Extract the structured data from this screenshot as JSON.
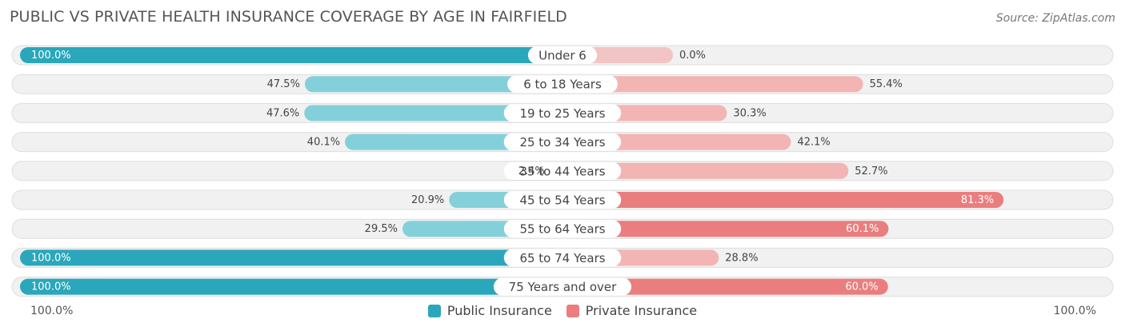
{
  "header": {
    "title": "PUBLIC VS PRIVATE HEALTH INSURANCE COVERAGE BY AGE IN FAIRFIELD",
    "source": "Source: ZipAtlas.com"
  },
  "axis": {
    "left_label": "100.0%",
    "right_label": "100.0%"
  },
  "legend": {
    "public_label": "Public Insurance",
    "private_label": "Private Insurance"
  },
  "colors": {
    "public_strong": "#2aa7ba",
    "public_light": "#84d0da",
    "private_strong": "#ea7e7e",
    "private_light": "#f3b4b4",
    "row_bg": "#f1f1f1",
    "row_border": "#dedede"
  },
  "chart_data": {
    "type": "bar",
    "title": "PUBLIC VS PRIVATE HEALTH INSURANCE COVERAGE BY AGE IN FAIRFIELD",
    "orientation": "diverging-horizontal",
    "unit": "%",
    "xlim": [
      -100,
      100
    ],
    "categories": [
      "Under 6",
      "6 to 18 Years",
      "19 to 25 Years",
      "25 to 34 Years",
      "35 to 44 Years",
      "45 to 54 Years",
      "55 to 64 Years",
      "65 to 74 Years",
      "75 Years and over"
    ],
    "series": [
      {
        "name": "Public Insurance",
        "values": [
          100.0,
          47.5,
          47.6,
          40.1,
          2.4,
          20.9,
          29.5,
          100.0,
          100.0
        ],
        "labels": [
          "100.0%",
          "47.5%",
          "47.6%",
          "40.1%",
          "2.4%",
          "20.9%",
          "29.5%",
          "100.0%",
          "100.0%"
        ]
      },
      {
        "name": "Private Insurance",
        "values": [
          0.0,
          55.4,
          30.3,
          42.1,
          52.7,
          81.3,
          60.1,
          28.8,
          60.0
        ],
        "labels": [
          "0.0%",
          "55.4%",
          "30.3%",
          "42.1%",
          "52.7%",
          "81.3%",
          "60.1%",
          "28.8%",
          "60.0%"
        ]
      }
    ],
    "legend_position": "bottom-center",
    "grid": false
  }
}
